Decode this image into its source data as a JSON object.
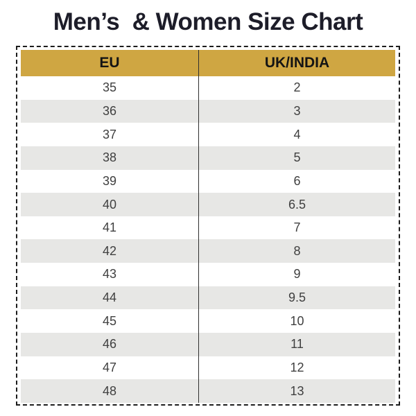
{
  "title": "Men’s  & Women Size Chart",
  "chart_data": {
    "type": "table",
    "title": "Men’s  & Women Size Chart",
    "columns": [
      "EU",
      "UK/INDIA"
    ],
    "rows": [
      [
        "35",
        "2"
      ],
      [
        "36",
        "3"
      ],
      [
        "37",
        "4"
      ],
      [
        "38",
        "5"
      ],
      [
        "39",
        "6"
      ],
      [
        "40",
        "6.5"
      ],
      [
        "41",
        "7"
      ],
      [
        "42",
        "8"
      ],
      [
        "43",
        "9"
      ],
      [
        "44",
        "9.5"
      ],
      [
        "45",
        "10"
      ],
      [
        "46",
        "11"
      ],
      [
        "47",
        "12"
      ],
      [
        "48",
        "13"
      ]
    ],
    "layout": {
      "header_position": "top",
      "row_striping": "alternating",
      "column_divider": true,
      "outer_border": "dashed"
    }
  },
  "colors": {
    "header_bg": "#cfa642",
    "alt_row_bg": "#e7e7e5",
    "title_text": "#1d1d29",
    "cell_text": "#3f3f3f",
    "header_text": "#141414",
    "border": "#1c1c1c"
  }
}
